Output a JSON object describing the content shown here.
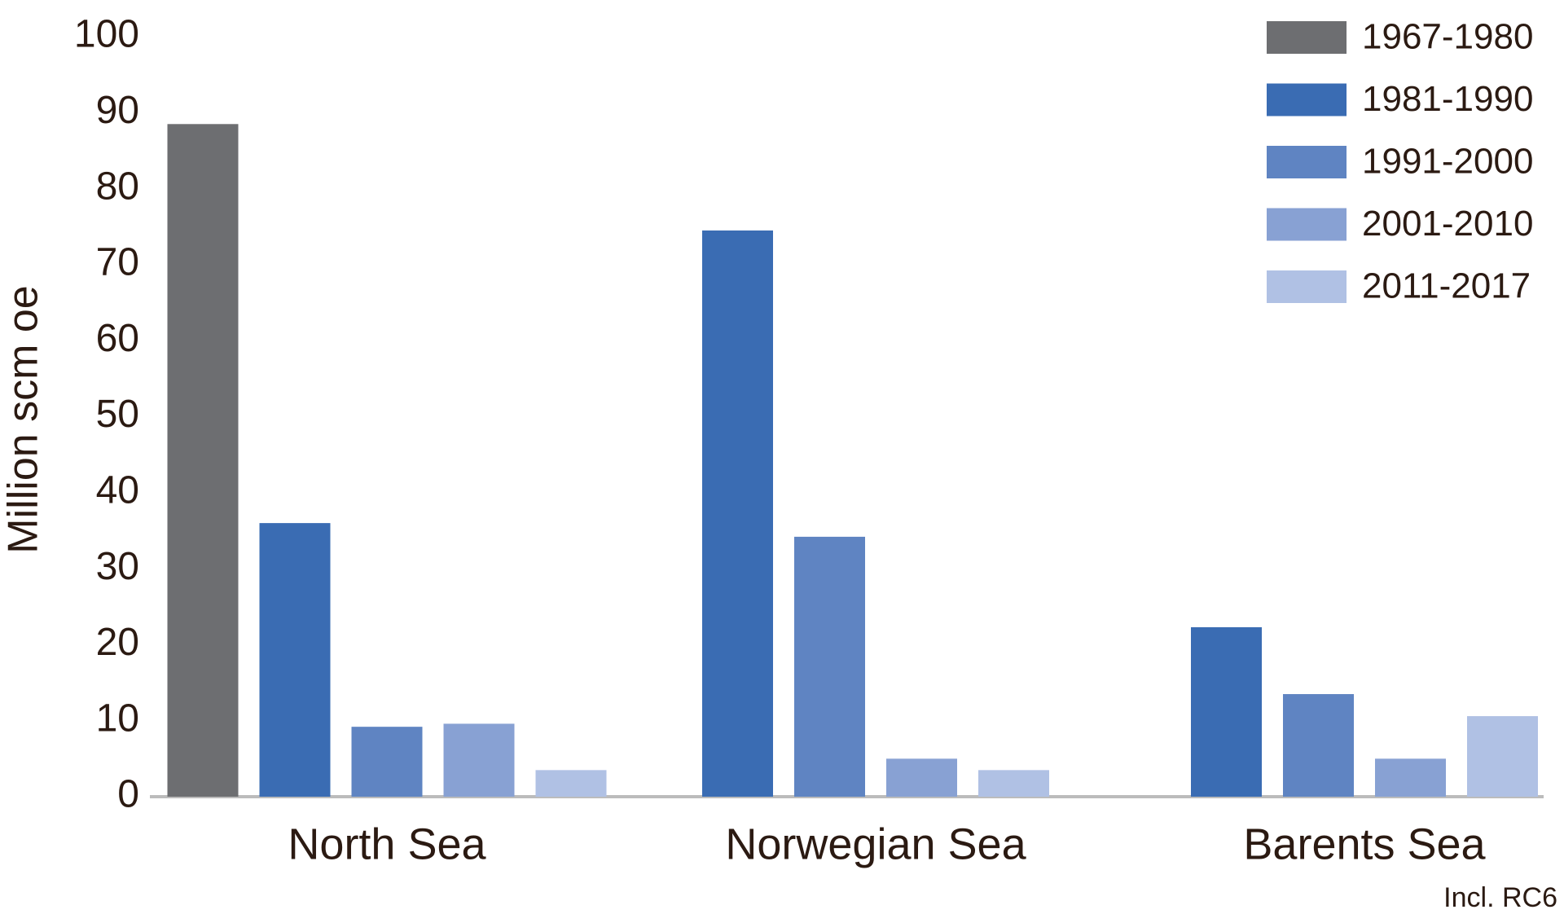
{
  "chart_data": {
    "type": "bar",
    "y_label": "Million scm oe",
    "categories": [
      "North Sea",
      "Norwegian Sea",
      "Barents Sea"
    ],
    "series": [
      {
        "name": "1967-1980",
        "color": "#6d6e71",
        "values": [
          88.5,
          null,
          null
        ]
      },
      {
        "name": "1981-1990",
        "color": "#3a6cb3",
        "values": [
          36,
          74.5,
          22.3
        ]
      },
      {
        "name": "1991-2000",
        "color": "#5f84c2",
        "values": [
          9.2,
          34.2,
          13.5
        ]
      },
      {
        "name": "2001-2010",
        "color": "#88a1d3",
        "values": [
          9.6,
          5,
          5
        ]
      },
      {
        "name": "2011-2017",
        "color": "#b0c1e4",
        "values": [
          3.5,
          3.5,
          10.6
        ]
      }
    ],
    "ylim": [
      0,
      100
    ],
    "yticks": [
      0,
      10,
      20,
      30,
      40,
      50,
      60,
      70,
      80,
      90,
      100
    ],
    "legend": "top-right",
    "note": "Incl. RC6"
  }
}
